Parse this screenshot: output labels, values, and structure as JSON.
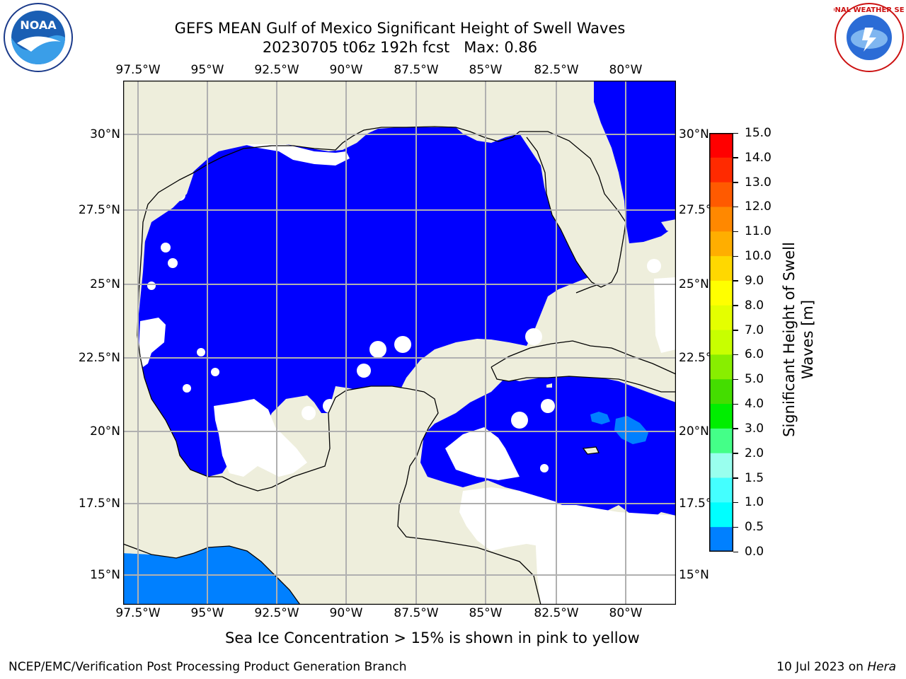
{
  "header": {
    "title_line1": "GEFS MEAN Gulf of Mexico Significant Height of Swell Waves",
    "title_line2": "20230705 t06z 192h fcst   Max: 0.86"
  },
  "logos": {
    "left": {
      "icon": "noaa-logo-icon",
      "text": "NOAA"
    },
    "right": {
      "icon": "national-weather-service-logo-icon",
      "text": "NATIONAL WEATHER SERVICE"
    }
  },
  "map": {
    "lon_labels": [
      "97.5°W",
      "95°W",
      "92.5°W",
      "90°W",
      "87.5°W",
      "85°W",
      "82.5°W",
      "80°W"
    ],
    "lat_labels": [
      "30°N",
      "27.5°N",
      "25°N",
      "22.5°N",
      "20°N",
      "17.5°N",
      "15°N"
    ],
    "colors": {
      "land": "#eeeedc",
      "swell_0_0_5": "#0000ff",
      "swell_0_5_1_0": "#0080ff",
      "no_data": "#ffffff",
      "grid": "#b0b0b0",
      "coast": "#000000"
    }
  },
  "colorbar": {
    "label_line1": "Significant Height of Swell",
    "label_line2": "Waves [m]",
    "ticks": [
      "15.0",
      "14.0",
      "13.0",
      "12.0",
      "11.0",
      "10.0",
      "9.0",
      "8.0",
      "7.0",
      "6.0",
      "5.0",
      "4.0",
      "3.0",
      "2.0",
      "1.5",
      "1.0",
      "0.5",
      "0.0"
    ],
    "colors": [
      "#ff0000",
      "#ff2a00",
      "#ff5a00",
      "#ff8800",
      "#ffae00",
      "#ffd800",
      "#ffff00",
      "#e4ff00",
      "#c8ff00",
      "#88ee00",
      "#44dd00",
      "#00ee00",
      "#44ff88",
      "#99ffee",
      "#44ffff",
      "#00ffff",
      "#0080ff",
      "#0000ff"
    ]
  },
  "note": "Sea Ice Concentration > 15% is shown in pink to yellow",
  "footer": {
    "left": "NCEP/EMC/Verification Post Processing Product Generation Branch",
    "right_date": "10 Jul 2023 on ",
    "right_host": "Hera"
  }
}
